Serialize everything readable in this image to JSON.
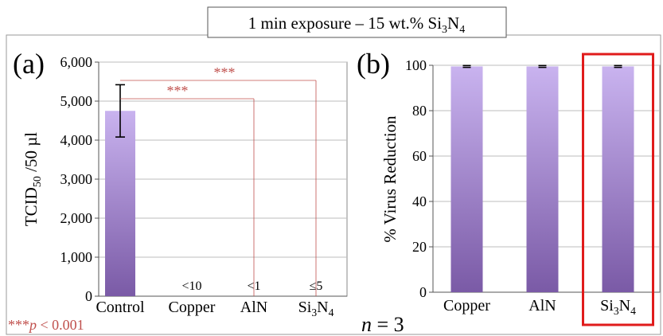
{
  "figure": {
    "header": {
      "prefix": "1 min exposure – 15 wt.% Si",
      "sub1": "3",
      "mid": "N",
      "sub2": "4"
    },
    "significance_note": {
      "stars": "***",
      "p": "p",
      "rest": " < 0.001"
    },
    "n_label": {
      "n": "n",
      "rest": " = 3"
    },
    "colors": {
      "bar_top": "#c9b3ef",
      "bar_bottom": "#7a5aa6",
      "sig": "#c0504d",
      "highlight": "#e01b1b",
      "grid": "#bdbdbd"
    }
  },
  "chart_data": [
    {
      "type": "bar",
      "panel_label": "(a)",
      "categories": [
        "Control",
        "Copper",
        "AlN",
        "Si3N4"
      ],
      "values": [
        4750,
        0,
        0,
        0
      ],
      "error": [
        670,
        0,
        0,
        0
      ],
      "value_labels": [
        "",
        "<10",
        "<1",
        "≤5"
      ],
      "ylabel": "TCID50 /50 µl",
      "ylim": [
        0,
        6000
      ],
      "yticks": [
        0,
        1000,
        2000,
        3000,
        4000,
        5000,
        6000
      ],
      "ytick_labels": [
        "0",
        "1,000",
        "2,000",
        "3,000",
        "4,000",
        "5,000",
        "6,000"
      ],
      "grid": true,
      "significance": [
        {
          "from": "Control",
          "to": "AlN",
          "label": "***"
        },
        {
          "from": "Control",
          "to": "Si3N4",
          "label": "***"
        }
      ]
    },
    {
      "type": "bar",
      "panel_label": "(b)",
      "categories": [
        "Copper",
        "AlN",
        "Si3N4"
      ],
      "values": [
        99.5,
        99.5,
        99.5
      ],
      "error": [
        0.4,
        0.4,
        0.4
      ],
      "ylabel": "% Virus Reduction",
      "ylim": [
        0,
        100
      ],
      "yticks": [
        0,
        20,
        40,
        60,
        80,
        100
      ],
      "ytick_labels": [
        "0",
        "20",
        "40",
        "60",
        "80",
        "100"
      ],
      "grid": true,
      "highlighted_category": "Si3N4"
    }
  ]
}
